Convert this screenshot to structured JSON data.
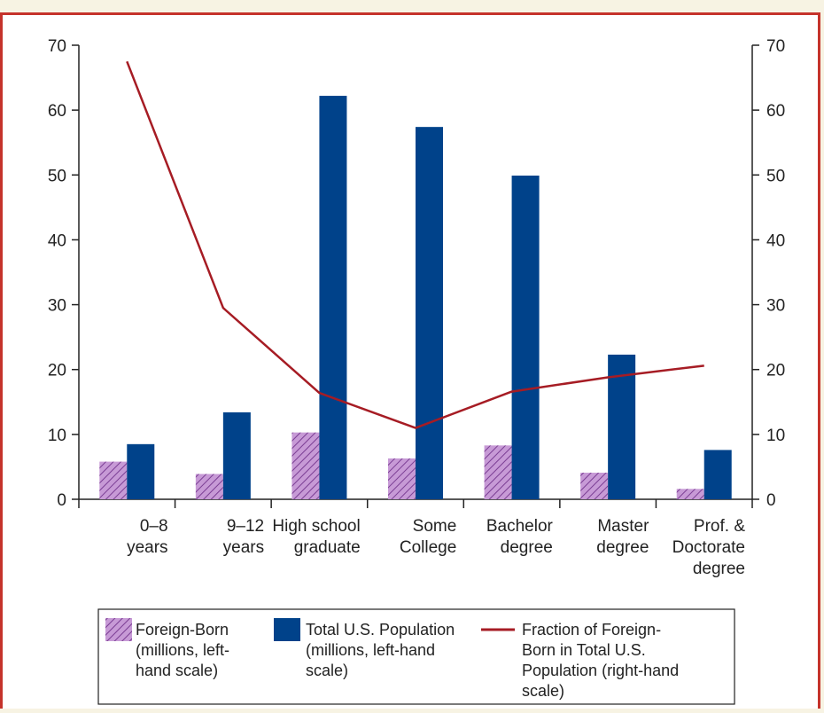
{
  "chart_data": {
    "type": "bar",
    "categories": [
      [
        "0–8",
        "years"
      ],
      [
        "9–12",
        "years"
      ],
      [
        "High school",
        "graduate"
      ],
      [
        "Some",
        "College"
      ],
      [
        "Bachelor",
        "degree"
      ],
      [
        "Master",
        "degree"
      ],
      [
        "Prof. &",
        "Doctorate",
        "degree"
      ]
    ],
    "ylim_left": [
      0,
      70
    ],
    "ylim_right": [
      0,
      70
    ],
    "yticks": [
      0,
      10,
      20,
      30,
      40,
      50,
      60,
      70
    ],
    "series": [
      {
        "key": "foreign",
        "kind": "bar",
        "axis": "left",
        "color": "#b37ac8",
        "pattern": "hatch",
        "values": [
          5.8,
          3.9,
          10.3,
          6.3,
          8.3,
          4.1,
          1.6
        ],
        "legend": [
          "Foreign-Born",
          "(millions, left-",
          "hand scale)"
        ]
      },
      {
        "key": "total",
        "kind": "bar",
        "axis": "left",
        "color": "#00428a",
        "values": [
          8.5,
          13.4,
          62.2,
          57.4,
          49.9,
          22.3,
          7.6
        ],
        "legend": [
          "Total U.S. Population",
          "(millions, left-hand",
          "scale)"
        ]
      },
      {
        "key": "fraction",
        "kind": "line",
        "axis": "right",
        "color": "#a61c24",
        "values": [
          67.5,
          29.5,
          16.4,
          11.0,
          16.6,
          18.8,
          20.6
        ],
        "legend": [
          "Fraction of Foreign-",
          "Born in Total U.S.",
          "Population (right-hand",
          "scale)"
        ]
      }
    ],
    "grid": false,
    "legend_position": "bottom"
  },
  "colors": {
    "accent_border": "#c5332b",
    "axis": "#222222"
  }
}
